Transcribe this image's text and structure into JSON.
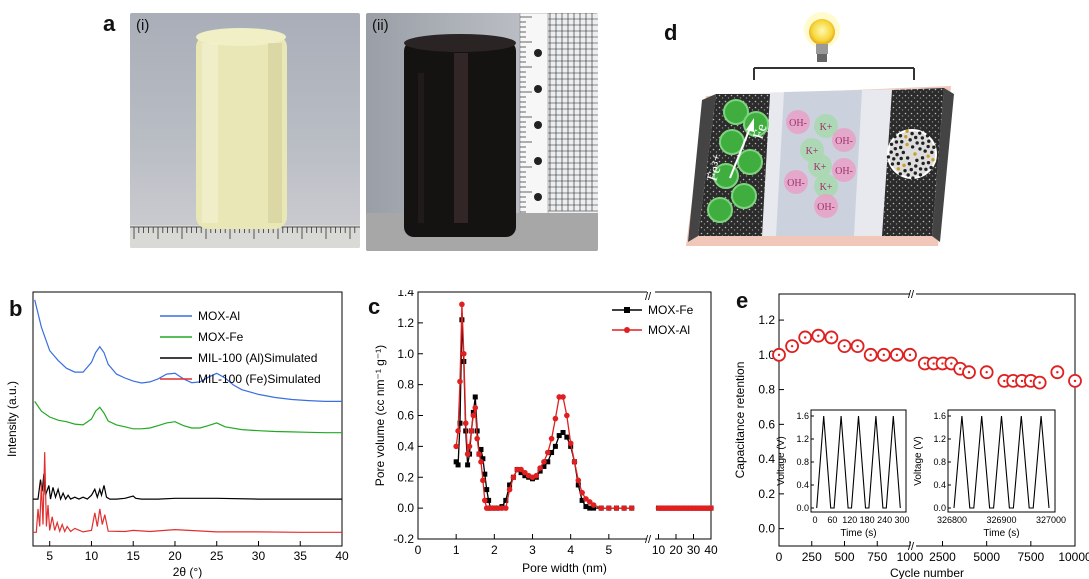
{
  "panel_labels": {
    "a": "a",
    "b": "b",
    "c": "c",
    "d": "d",
    "e": "e"
  },
  "photos": {
    "sub_i": "(i)",
    "sub_ii": "(ii)"
  },
  "schematic": {
    "fe_ion": "Fe³⁺",
    "fe_metal": "Fe",
    "ions": [
      {
        "t": "OH-",
        "c": "#e7a3c8"
      },
      {
        "t": "K+",
        "c": "#a8d8b0"
      },
      {
        "t": "OH-",
        "c": "#e7a3c8"
      },
      {
        "t": "K+",
        "c": "#a8d8b0"
      },
      {
        "t": "K+",
        "c": "#a8d8b0"
      },
      {
        "t": "OH-",
        "c": "#e7a3c8"
      },
      {
        "t": "OH-",
        "c": "#e7a3c8"
      },
      {
        "t": "K+",
        "c": "#a8d8b0"
      },
      {
        "t": "OH-",
        "c": "#e7a3c8"
      }
    ]
  },
  "chart_data": [
    {
      "panel": "b",
      "type": "line",
      "xlabel": "2θ (°)",
      "ylabel": "Intensity (a.u.)",
      "xlim": [
        3,
        40
      ],
      "xticks": [
        5,
        10,
        15,
        20,
        25,
        30,
        35,
        40
      ],
      "legend_position": "top-right",
      "series": [
        {
          "name": "MOX-Al",
          "color": "#3a6fe0",
          "x": [
            3.2,
            4,
            5,
            6,
            7,
            8,
            9,
            10,
            10.5,
            11,
            11.5,
            12,
            13,
            14,
            15,
            16,
            17,
            18,
            19,
            20,
            21,
            22,
            23,
            24,
            25,
            26,
            27,
            28,
            30,
            32,
            34,
            36,
            38,
            40
          ],
          "y": [
            6.3,
            5.6,
            5.0,
            4.75,
            4.55,
            4.45,
            4.45,
            4.7,
            4.95,
            5.1,
            4.95,
            4.65,
            4.4,
            4.3,
            4.22,
            4.17,
            4.2,
            4.28,
            4.4,
            4.42,
            4.28,
            4.18,
            4.2,
            4.32,
            4.42,
            4.3,
            4.12,
            4.0,
            3.88,
            3.8,
            3.75,
            3.72,
            3.7,
            3.7
          ]
        },
        {
          "name": "MOX-Fe",
          "color": "#22aa22",
          "x": [
            3.2,
            4,
            5,
            6,
            7,
            8,
            9,
            10,
            10.5,
            11,
            11.5,
            12,
            13,
            14,
            15,
            16,
            17,
            18,
            19,
            20,
            21,
            22,
            23,
            24,
            25,
            26,
            28,
            30,
            32,
            34,
            36,
            38,
            40
          ],
          "y": [
            3.7,
            3.45,
            3.3,
            3.22,
            3.18,
            3.12,
            3.1,
            3.25,
            3.45,
            3.55,
            3.4,
            3.2,
            3.1,
            3.05,
            3.0,
            3.0,
            3.02,
            3.08,
            3.15,
            3.18,
            3.08,
            3.02,
            3.02,
            3.08,
            3.15,
            3.05,
            2.98,
            2.95,
            2.93,
            2.92,
            2.91,
            2.9,
            2.9
          ]
        },
        {
          "name": "MIL-100 (Al)Simulated",
          "color": "#000000",
          "x": [
            3,
            3.6,
            3.9,
            4.1,
            4.3,
            4.5,
            4.9,
            5.1,
            5.4,
            5.7,
            6,
            6.3,
            6.6,
            6.9,
            7.2,
            7.5,
            8,
            8.5,
            9,
            9.5,
            10,
            10.4,
            10.7,
            11,
            11.2,
            11.5,
            11.8,
            12.2,
            13,
            14,
            15,
            15.3,
            16,
            18,
            20,
            25,
            30,
            35,
            40
          ],
          "y": [
            1.2,
            1.2,
            1.7,
            1.4,
            1.85,
            1.3,
            1.55,
            1.2,
            1.5,
            1.25,
            1.45,
            1.2,
            1.35,
            1.2,
            1.3,
            1.2,
            1.25,
            1.2,
            1.25,
            1.2,
            1.3,
            1.45,
            1.25,
            1.45,
            1.3,
            1.55,
            1.25,
            1.2,
            1.2,
            1.22,
            1.28,
            1.22,
            1.2,
            1.2,
            1.22,
            1.22,
            1.2,
            1.2,
            1.2
          ]
        },
        {
          "name": "MIL-100 (Fe)Simulated",
          "color": "#e03030",
          "x": [
            3,
            3.4,
            3.6,
            3.8,
            4.0,
            4.2,
            4.4,
            4.6,
            4.8,
            5,
            5.3,
            5.6,
            5.9,
            6.2,
            6.5,
            6.8,
            7.1,
            7.5,
            8,
            9,
            10,
            10.4,
            10.7,
            11,
            11.3,
            11.6,
            12,
            14,
            15,
            17,
            20,
            25,
            30,
            35,
            40
          ],
          "y": [
            0.35,
            0.35,
            0.95,
            0.5,
            1.6,
            0.55,
            2.4,
            0.5,
            1.05,
            0.4,
            0.75,
            0.4,
            0.6,
            0.38,
            0.55,
            0.37,
            0.5,
            0.37,
            0.45,
            0.36,
            0.4,
            0.85,
            0.5,
            0.95,
            0.55,
            0.8,
            0.38,
            0.37,
            0.4,
            0.37,
            0.42,
            0.36,
            0.36,
            0.35,
            0.35
          ]
        }
      ]
    },
    {
      "panel": "c",
      "type": "line",
      "xlabel": "Pore width (nm)",
      "ylabel": "Pore volume (cc nm⁻¹ g⁻¹)",
      "ylim": [
        -0.2,
        1.4
      ],
      "yticks": [
        -0.2,
        0.0,
        0.2,
        0.4,
        0.6,
        0.8,
        1.0,
        1.2,
        1.4
      ],
      "xticks_left": [
        0,
        1,
        2,
        3,
        4,
        5
      ],
      "xticks_right": [
        10,
        20,
        30,
        40
      ],
      "axis_break": true,
      "legend_position": "top-right",
      "series": [
        {
          "name": "MOX-Fe",
          "color": "#000000",
          "marker": "square",
          "x": [
            1.0,
            1.05,
            1.1,
            1.15,
            1.2,
            1.25,
            1.3,
            1.35,
            1.4,
            1.45,
            1.5,
            1.55,
            1.6,
            1.65,
            1.7,
            1.75,
            1.8,
            1.85,
            1.9,
            2.0,
            2.1,
            2.2,
            2.3,
            2.4,
            2.5,
            2.6,
            2.7,
            2.8,
            2.9,
            3.0,
            3.1,
            3.2,
            3.3,
            3.4,
            3.5,
            3.6,
            3.7,
            3.8,
            3.9,
            4.0,
            4.1,
            4.2,
            4.3,
            4.4,
            4.5,
            4.6,
            4.8,
            5.0,
            5.2,
            5.4,
            5.6
          ],
          "y": [
            0.3,
            0.28,
            0.55,
            1.22,
            0.95,
            0.5,
            0.28,
            0.35,
            0.5,
            0.62,
            0.72,
            0.5,
            0.35,
            0.38,
            0.32,
            0.22,
            0.12,
            0.05,
            0.0,
            0.0,
            0.0,
            0.01,
            0.05,
            0.15,
            0.2,
            0.25,
            0.23,
            0.21,
            0.2,
            0.19,
            0.2,
            0.24,
            0.27,
            0.3,
            0.36,
            0.4,
            0.47,
            0.49,
            0.46,
            0.4,
            0.3,
            0.15,
            0.05,
            0.01,
            0.0,
            0.0,
            0.0,
            0.0,
            0.0,
            0.0,
            0.0
          ],
          "x_right": [
            10,
            12,
            14,
            16,
            18,
            20,
            22,
            24,
            26,
            28,
            30,
            32,
            34,
            36,
            38,
            40
          ],
          "y_right": [
            0,
            0,
            0,
            0,
            0,
            0,
            0,
            0,
            0,
            0,
            0,
            0,
            0,
            0,
            0,
            0
          ]
        },
        {
          "name": "MOX-Al",
          "color": "#e02020",
          "marker": "circle",
          "x": [
            1.0,
            1.05,
            1.1,
            1.15,
            1.2,
            1.25,
            1.3,
            1.35,
            1.4,
            1.45,
            1.5,
            1.55,
            1.6,
            1.65,
            1.7,
            1.75,
            1.8,
            1.85,
            1.9,
            2.0,
            2.1,
            2.2,
            2.3,
            2.4,
            2.5,
            2.6,
            2.7,
            2.8,
            2.9,
            3.0,
            3.1,
            3.2,
            3.3,
            3.4,
            3.5,
            3.6,
            3.7,
            3.8,
            3.9,
            4.0,
            4.1,
            4.2,
            4.3,
            4.4,
            4.5,
            4.6,
            4.8,
            5.0,
            5.2,
            5.4,
            5.6
          ],
          "y": [
            0.4,
            0.5,
            0.82,
            1.32,
            1.0,
            0.55,
            0.35,
            0.4,
            0.5,
            0.6,
            0.65,
            0.45,
            0.35,
            0.3,
            0.18,
            0.05,
            0.0,
            0.0,
            0.0,
            0.0,
            0.0,
            0.0,
            0.0,
            0.12,
            0.2,
            0.25,
            0.25,
            0.23,
            0.21,
            0.2,
            0.21,
            0.26,
            0.3,
            0.36,
            0.45,
            0.58,
            0.72,
            0.72,
            0.6,
            0.42,
            0.3,
            0.18,
            0.1,
            0.06,
            0.04,
            0.02,
            0.0,
            0.0,
            0.0,
            0.0,
            0.0
          ],
          "x_right": [
            10,
            11,
            12,
            13,
            14,
            15,
            16,
            17,
            18,
            19,
            20,
            21,
            22,
            23,
            24,
            25,
            26,
            27,
            28,
            29,
            30,
            31,
            32,
            33,
            34,
            35,
            36,
            37,
            38,
            39,
            40
          ],
          "y_right": [
            0,
            0,
            0,
            0,
            0,
            0,
            0,
            0,
            0,
            0,
            0,
            0,
            0,
            0,
            0,
            0,
            0,
            0,
            0,
            0,
            0,
            0,
            0,
            0,
            0,
            0,
            0,
            0,
            0,
            0,
            0
          ]
        }
      ]
    },
    {
      "panel": "e",
      "type": "scatter",
      "xlabel": "Cycle number",
      "ylabel": "Capacitance retention",
      "ylim": [
        -0.1,
        1.35
      ],
      "yticks": [
        0.0,
        0.2,
        0.4,
        0.6,
        0.8,
        1.0,
        1.2
      ],
      "xticks_left": [
        0,
        250,
        500,
        750,
        1000
      ],
      "xticks_right": [
        2500,
        5000,
        7500,
        10000
      ],
      "axis_break": true,
      "series": [
        {
          "name": "",
          "color": "#e02020",
          "marker": "circle",
          "x": [
            0,
            100,
            200,
            300,
            400,
            500,
            600,
            700,
            800,
            900,
            1000,
            1500,
            2000,
            2500,
            3000,
            3500,
            4000,
            5000,
            6000,
            6500,
            7000,
            7500,
            8000,
            9000,
            10000
          ],
          "y": [
            1.0,
            1.05,
            1.1,
            1.11,
            1.1,
            1.05,
            1.05,
            1.0,
            1.0,
            1.0,
            1.0,
            0.95,
            0.95,
            0.95,
            0.95,
            0.92,
            0.9,
            0.9,
            0.85,
            0.85,
            0.85,
            0.85,
            0.84,
            0.9,
            0.85
          ]
        }
      ],
      "insets": [
        {
          "ylabel": "Voltage (V)",
          "xlabel": "Time (s)",
          "ylim": [
            0,
            1.6
          ],
          "yticks": [
            0.0,
            0.4,
            0.8,
            1.2,
            1.6
          ],
          "xlim": [
            0,
            300
          ],
          "xticks": [
            0,
            60,
            120,
            180,
            240,
            300
          ],
          "cycles": 5,
          "peak": 1.6
        },
        {
          "ylabel": "Voltage (V)",
          "xlabel": "Time (s)",
          "ylim": [
            0,
            1.6
          ],
          "yticks": [
            0.0,
            0.4,
            0.8,
            1.2,
            1.6
          ],
          "xlim": [
            326800,
            327000
          ],
          "xticks": [
            326800,
            326900,
            327000
          ],
          "cycles": 5,
          "peak": 1.6
        }
      ]
    }
  ]
}
